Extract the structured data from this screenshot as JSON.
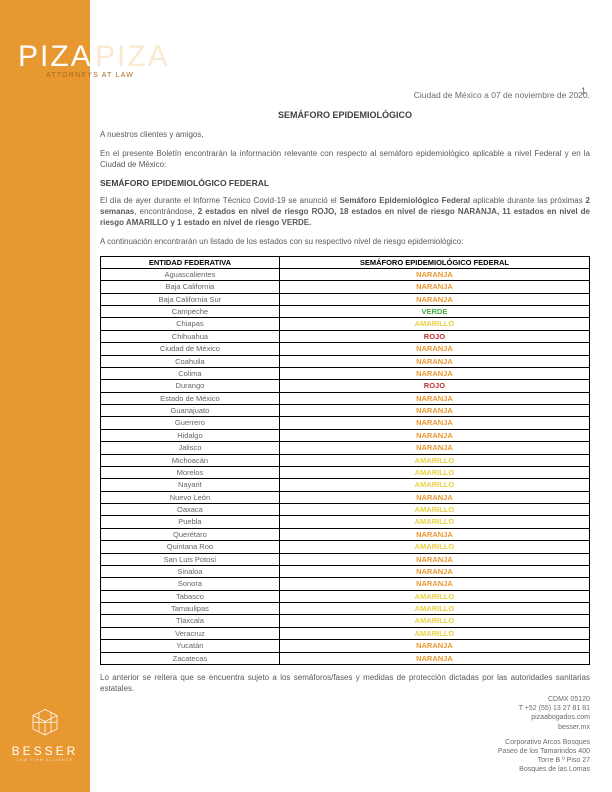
{
  "logo": {
    "main": "PIZA",
    "ghost": "PIZA",
    "sub": "ATTORNEYS AT LAW"
  },
  "besser": {
    "text": "BESSER",
    "sub": "LAW FIRM ALLIANCE"
  },
  "page_number": "1",
  "dateline": "Ciudad de México a 07 de noviembre de 2020.",
  "title": "SEMÁFORO EPIDEMIOLÓGICO",
  "para_salutation": "A nuestros clientes y amigos,",
  "para_intro": "En el presente Boletín encontrarán la información relevante con respecto al semáforo epidemiológico aplicable a nivel Federal y en la Ciudad de México:",
  "section_federal": "SEMÁFORO EPIDEMIOLÓGICO FEDERAL",
  "para_federal_1a": "El día de ayer durante el Informe Técnico Covid-19 se anunció el ",
  "para_federal_1b": "Semáforo Epidemiológico Federal",
  "para_federal_1c": " aplicable durante las próximas ",
  "para_federal_1d": "2 semanas",
  "para_federal_1e": ", encontrándose, ",
  "para_federal_1f": "2 estados en nivel de riesgo ROJO, 18 estados en nivel de riesgo NARANJA, 11 estados en nivel de riesgo AMARILLO y 1 estado en nivel de riesgo VERDE.",
  "para_federal_2": "A continuación encontrarán un listado de los estados con su respectivo nivel de riesgo epidemiológico:",
  "table": {
    "headers": [
      "ENTIDAD FEDERATIVA",
      "SEMÁFORO EPIDEMIOLÓGICO FEDERAL"
    ],
    "rows": [
      [
        "Aguascalientes",
        "NARANJA"
      ],
      [
        "Baja California",
        "NARANJA"
      ],
      [
        "Baja California Sur",
        "NARANJA"
      ],
      [
        "Campeche",
        "VERDE"
      ],
      [
        "Chiapas",
        "AMARILLO"
      ],
      [
        "Chihuahua",
        "ROJO"
      ],
      [
        "Ciudad de México",
        "NARANJA"
      ],
      [
        "Coahuila",
        "NARANJA"
      ],
      [
        "Colima",
        "NARANJA"
      ],
      [
        "Durango",
        "ROJO"
      ],
      [
        "Estado de México",
        "NARANJA"
      ],
      [
        "Guanajuato",
        "NARANJA"
      ],
      [
        "Guerrero",
        "NARANJA"
      ],
      [
        "Hidalgo",
        "NARANJA"
      ],
      [
        "Jalisco",
        "NARANJA"
      ],
      [
        "Michoacán",
        "AMARILLO"
      ],
      [
        "Morelos",
        "AMARILLO"
      ],
      [
        "Nayarit",
        "AMARILLO"
      ],
      [
        "Nuevo León",
        "NARANJA"
      ],
      [
        "Oaxaca",
        "AMARILLO"
      ],
      [
        "Puebla",
        "AMARILLO"
      ],
      [
        "Querétaro",
        "NARANJA"
      ],
      [
        "Quintana Roo",
        "AMARILLO"
      ],
      [
        "San Luis Potosí",
        "NARANJA"
      ],
      [
        "Sinaloa",
        "NARANJA"
      ],
      [
        "Sonora",
        "NARANJA"
      ],
      [
        "Tabasco",
        "AMARILLO"
      ],
      [
        "Tamaulipas",
        "AMARILLO"
      ],
      [
        "Tlaxcala",
        "AMARILLO"
      ],
      [
        "Veracruz",
        "AMARILLO"
      ],
      [
        "Yucatán",
        "NARANJA"
      ],
      [
        "Zacatecas",
        "NARANJA"
      ]
    ]
  },
  "para_closing": "Lo anterior se reitera que se encuentra sujeto a los semáforos/fases y medidas de protección dictadas por las autoridades sanitarias estatales.",
  "footer": {
    "block1": [
      "CDMX 05120",
      "T +52 (55) 13 27 81 81",
      "pizaabogados.com",
      "besser.mx"
    ],
    "block2": [
      "Corporativo Arcos Bosques",
      "Paseo de los Tamarindos 400",
      "Torre B º Piso 27",
      "Bosques de las Lomas"
    ]
  },
  "colors": {
    "sidebar": "#e89830",
    "text_body": "#5a5a5a",
    "text_heading": "#404040"
  }
}
